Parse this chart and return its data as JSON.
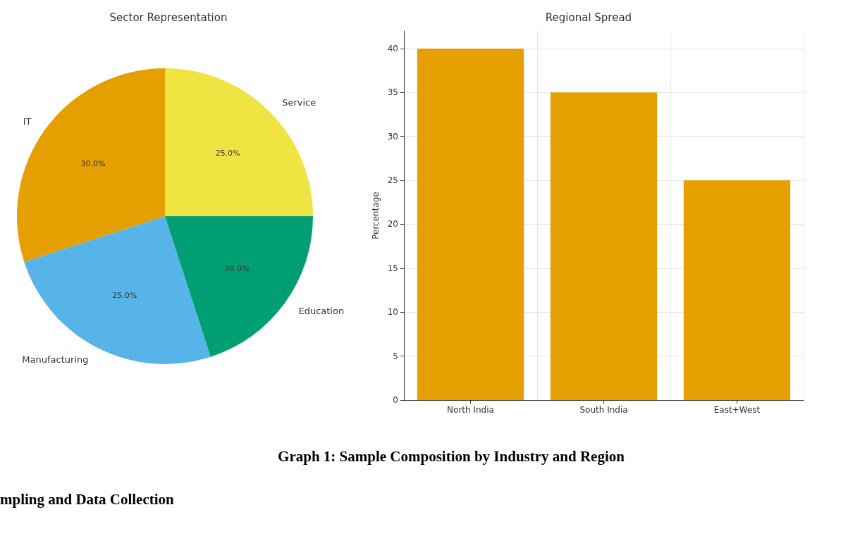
{
  "chart_data": [
    {
      "type": "pie",
      "title": "Sector Representation",
      "categories": [
        "IT",
        "Manufacturing",
        "Education",
        "Service"
      ],
      "values": [
        30,
        25,
        20,
        25
      ],
      "colors": [
        "#e69f00",
        "#56b4e9",
        "#009e73",
        "#f0e442"
      ],
      "value_labels": [
        "30.0%",
        "25.0%",
        "20.0%",
        "25.0%"
      ],
      "legend": false
    },
    {
      "type": "bar",
      "title": "Regional Spread",
      "ylabel": "Percentage",
      "categories": [
        "North India",
        "South India",
        "East+West"
      ],
      "values": [
        40,
        35,
        25
      ],
      "color": "#e69f00",
      "ylim": [
        0,
        42
      ],
      "yticks": [
        0,
        5,
        10,
        15,
        20,
        25,
        30,
        35,
        40
      ],
      "grid": true,
      "legend": false,
      "annotations": [
        "Graph 1: Sample Composition by Industry and Region",
        "mpling and Data Collection"
      ]
    }
  ]
}
